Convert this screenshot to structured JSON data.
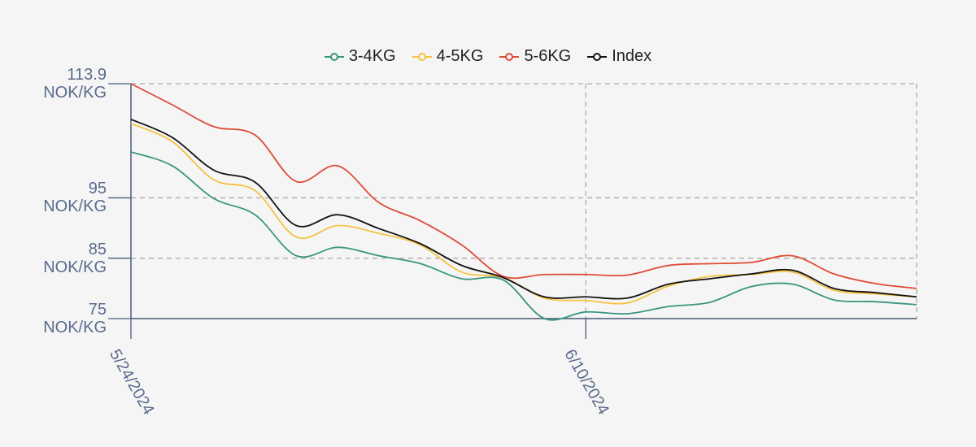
{
  "chart_data": {
    "type": "line",
    "categories": [
      "5/24/2024",
      null,
      null,
      null,
      null,
      null,
      null,
      null,
      null,
      null,
      null,
      "6/10/2024",
      null,
      null,
      null,
      null,
      null,
      null,
      null,
      null
    ],
    "series": [
      {
        "name": "3-4KG",
        "color": "#3a9680",
        "values": [
          102.6,
          100.3,
          94.9,
          92.2,
          85.4,
          86.8,
          85.4,
          84.1,
          81.6,
          81.4,
          75.0,
          76.1,
          75.8,
          77.0,
          77.7,
          80.3,
          80.7,
          78.1,
          77.8,
          77.3
        ]
      },
      {
        "name": "4-5KG",
        "color": "#f5c242",
        "values": [
          107.3,
          104.3,
          98.0,
          96.2,
          88.5,
          90.4,
          89.1,
          87.2,
          82.7,
          81.8,
          78.4,
          78.0,
          77.6,
          80.4,
          82.0,
          82.3,
          82.7,
          79.7,
          79.1,
          78.6
        ]
      },
      {
        "name": "5-6KG",
        "color": "#e04b35",
        "values": [
          113.9,
          110.4,
          106.8,
          105.4,
          97.7,
          100.3,
          94.2,
          91.2,
          87.2,
          82.0,
          82.3,
          82.3,
          82.2,
          83.8,
          84.1,
          84.3,
          85.4,
          82.4,
          80.8,
          80.0
        ]
      },
      {
        "name": "Index",
        "color": "#111111",
        "values": [
          108.0,
          105.0,
          99.6,
          97.6,
          90.4,
          92.2,
          89.9,
          87.4,
          83.8,
          81.8,
          78.6,
          78.6,
          78.4,
          80.7,
          81.6,
          82.4,
          83.0,
          80.0,
          79.3,
          78.6
        ]
      }
    ],
    "ylim": [
      75,
      113.9
    ],
    "yticks": [
      {
        "value": 75,
        "label": "75\nNOK/KG"
      },
      {
        "value": 85,
        "label": "85\nNOK/KG"
      },
      {
        "value": 95,
        "label": "95\nNOK/KG"
      },
      {
        "value": 113.9,
        "label": "113.9\nNOK/KG"
      }
    ],
    "grid": true,
    "legend": "top"
  }
}
